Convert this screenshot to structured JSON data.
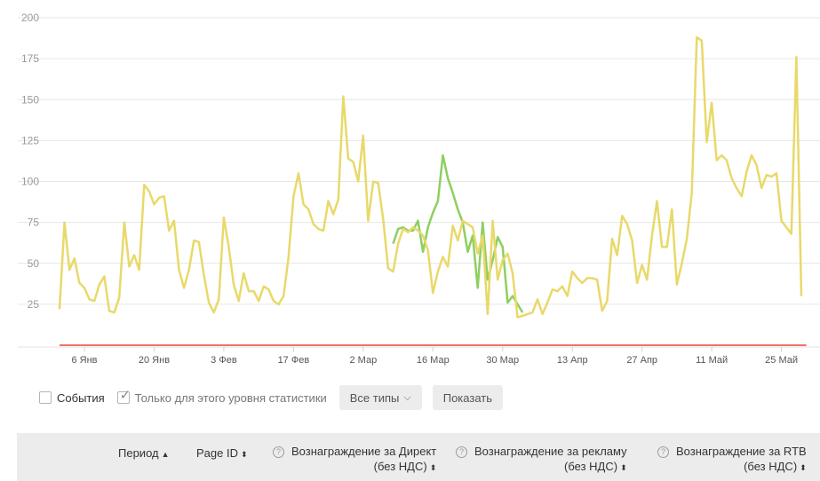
{
  "chart_data": {
    "type": "line",
    "ylim": [
      0,
      200
    ],
    "y_ticks": [
      25,
      50,
      75,
      100,
      125,
      150,
      175,
      200
    ],
    "x_tick_labels": [
      "6 Янв",
      "20 Янв",
      "3 Фев",
      "17 Фев",
      "2 Мар",
      "16 Мар",
      "30 Мар",
      "13 Апр",
      "27 Апр",
      "11 Май",
      "25 Май"
    ],
    "x_tick_index": [
      5,
      19,
      33,
      47,
      61,
      75,
      89,
      103,
      117,
      131,
      145
    ],
    "grid": true,
    "series": [
      {
        "color": "#e8d96a",
        "values": [
          22,
          75,
          46,
          53,
          38,
          35,
          28,
          27,
          37,
          42,
          21,
          20,
          29,
          75,
          48,
          55,
          46,
          98,
          94,
          86,
          90,
          91,
          70,
          76,
          46,
          35,
          46,
          64,
          63,
          43,
          26,
          20,
          28,
          78,
          60,
          37,
          27,
          44,
          33,
          33,
          27,
          36,
          34,
          27,
          25,
          30,
          54,
          91,
          105,
          86,
          83,
          74,
          71,
          70,
          88,
          80,
          89,
          152,
          114,
          112,
          100,
          128,
          76,
          100,
          99,
          77,
          47,
          45,
          62,
          71,
          69,
          72,
          70,
          67,
          58,
          32,
          45,
          54,
          48,
          73,
          64,
          76,
          74,
          72,
          56,
          67,
          19,
          76,
          40,
          52,
          56,
          44,
          17,
          18,
          19,
          20,
          28,
          19,
          26,
          34,
          33,
          36,
          30,
          45,
          41,
          38,
          41,
          41,
          40,
          21,
          27,
          65,
          55,
          79,
          74,
          64,
          38,
          49,
          40,
          67,
          88,
          60,
          60,
          83,
          37,
          50,
          65,
          93,
          188,
          186,
          124,
          148,
          113,
          116,
          113,
          102,
          96,
          91,
          106,
          116,
          110,
          96,
          104,
          103,
          105,
          76,
          72,
          68,
          176,
          30
        ]
      },
      {
        "color": "#8ecf60",
        "values": [
          null,
          null,
          null,
          null,
          null,
          null,
          null,
          null,
          null,
          null,
          null,
          null,
          null,
          null,
          null,
          null,
          null,
          null,
          null,
          null,
          null,
          null,
          null,
          null,
          null,
          null,
          null,
          null,
          null,
          null,
          null,
          null,
          null,
          null,
          null,
          null,
          null,
          null,
          null,
          null,
          null,
          null,
          null,
          null,
          null,
          null,
          null,
          null,
          null,
          null,
          null,
          null,
          null,
          null,
          null,
          null,
          null,
          null,
          null,
          null,
          null,
          null,
          null,
          null,
          null,
          null,
          null,
          62,
          71,
          72,
          70,
          70,
          76,
          57,
          72,
          81,
          88,
          116,
          102,
          93,
          83,
          75,
          57,
          67,
          35,
          75,
          40,
          52,
          66,
          60,
          26,
          30,
          25,
          20,
          null,
          null,
          null,
          null,
          null,
          null,
          null,
          null,
          null,
          null,
          null,
          null,
          null,
          null,
          null,
          null,
          null,
          null,
          null,
          null,
          null,
          null,
          null,
          null,
          null,
          null,
          null,
          null,
          null,
          null,
          null,
          null,
          null,
          null,
          null,
          null,
          null,
          null,
          null,
          null,
          null,
          null,
          null,
          null,
          null,
          null,
          null,
          null,
          null,
          null,
          null,
          null,
          null,
          null,
          null,
          null
        ]
      },
      {
        "color": "#e8433a",
        "values": [
          0,
          0,
          0,
          0,
          0,
          0,
          0,
          0,
          0,
          0,
          0,
          0,
          0,
          0,
          0,
          0,
          0,
          0,
          0,
          0,
          0,
          0,
          0,
          0,
          0,
          0,
          0,
          0,
          0,
          0,
          0,
          0,
          0,
          0,
          0,
          0,
          0,
          0,
          0,
          0,
          0,
          0,
          0,
          0,
          0,
          0,
          0,
          0,
          0,
          0,
          0,
          0,
          0,
          0,
          0,
          0,
          0,
          0,
          0,
          0,
          0,
          0,
          0,
          0,
          0,
          0,
          0,
          0,
          0,
          0,
          0,
          0,
          0,
          0,
          0,
          0,
          0,
          0,
          0,
          0,
          0,
          0,
          0,
          0,
          0,
          0,
          0,
          0,
          0,
          0,
          0,
          0,
          0,
          0,
          0,
          0,
          0,
          0,
          0,
          0,
          0,
          0,
          0,
          0,
          0,
          0,
          0,
          0,
          0,
          0,
          0,
          0,
          0,
          0,
          0,
          0,
          0,
          0,
          0,
          0,
          0,
          0,
          0,
          0,
          0,
          0,
          0,
          0,
          0,
          0,
          0,
          0,
          0,
          0,
          0,
          0,
          0,
          0,
          0,
          0,
          0,
          0,
          0,
          0,
          0,
          0,
          0,
          0,
          0,
          0,
          0
        ]
      }
    ]
  },
  "controls": {
    "events_label": "События",
    "events_checked": false,
    "level_only_label": "Только для этого уровня статистики",
    "level_only_checked": true,
    "types_button": "Все типы",
    "show_button": "Показать"
  },
  "table_header": {
    "period": "Период",
    "page_id": "Page ID",
    "direct_reward": "Вознаграждение за Директ",
    "direct_reward_sub": "(без НДС)",
    "ad_reward": "Вознаграждение за рекламу",
    "ad_reward_sub": "(без НДС)",
    "rtb_reward": "Вознаграждение за RTB",
    "rtb_reward_sub": "(без НДС)",
    "sort_up": "▲",
    "sort_both": "⬍",
    "help": "?"
  },
  "icons": {
    "help": "question-circle-icon",
    "sort": "sort-arrows-icon",
    "chevron": "chevron-down-icon",
    "check": "checkmark-icon"
  }
}
